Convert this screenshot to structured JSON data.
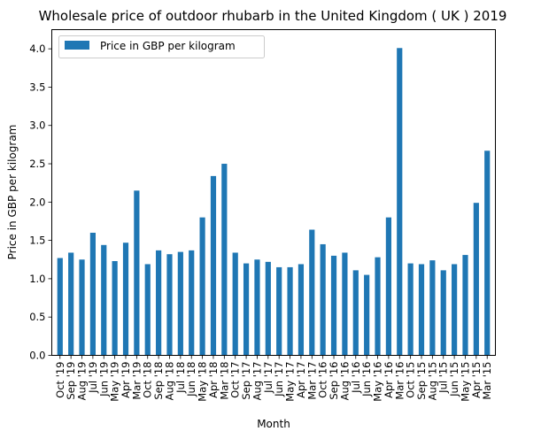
{
  "chart_data": {
    "type": "bar",
    "title": "Wholesale price of outdoor rhubarb in the United Kingdom ( UK ) 2019",
    "xlabel": "Month",
    "ylabel": "Price in GBP per kilogram",
    "ylim": [
      0,
      4.25
    ],
    "yticks": [
      "0.0",
      "0.5",
      "1.0",
      "1.5",
      "2.0",
      "2.5",
      "3.0",
      "3.5",
      "4.0"
    ],
    "legend_position": "top-left",
    "grid": false,
    "categories": [
      "Oct '19",
      "Sep '19",
      "Aug '19",
      "Jul '19",
      "Jun '19",
      "May '19",
      "Apr '19",
      "Mar '19",
      "Oct '18",
      "Sep '18",
      "Aug '18",
      "Jul '18",
      "Jun '18",
      "May '18",
      "Apr '18",
      "Mar '18",
      "Oct '17",
      "Sep '17",
      "Aug '17",
      "Jul '17",
      "Jun '17",
      "May '17",
      "Apr '17",
      "Mar '17",
      "Oct '16",
      "Sep '16",
      "Aug '16",
      "Jul '16",
      "Jun '16",
      "May '16",
      "Apr '16",
      "Mar '16",
      "Oct '15",
      "Sep '15",
      "Aug '15",
      "Jul '15",
      "Jun '15",
      "May '15",
      "Apr '15",
      "Mar '15"
    ],
    "series": [
      {
        "name": "Price in GBP per kilogram",
        "color": "#1f77b4",
        "values": [
          1.27,
          1.34,
          1.25,
          1.6,
          1.44,
          1.23,
          1.47,
          2.15,
          1.19,
          1.37,
          1.32,
          1.35,
          1.37,
          1.8,
          2.34,
          2.5,
          1.34,
          1.2,
          1.25,
          1.22,
          1.15,
          1.15,
          1.19,
          1.64,
          1.45,
          1.3,
          1.34,
          1.11,
          1.05,
          1.28,
          1.8,
          4.01,
          1.2,
          1.19,
          1.24,
          1.11,
          1.19,
          1.31,
          1.99,
          2.67
        ]
      }
    ]
  }
}
